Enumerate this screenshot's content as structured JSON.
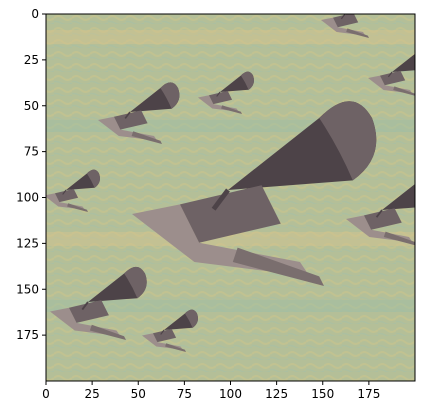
{
  "image": {
    "subject": "tiled-gramophone-collage",
    "colors": {
      "background_green": "#b4bf98",
      "background_yellow": "#d5c48f",
      "background_blue": "#9ebda4",
      "object_dark": "#4d4348",
      "object_mid": "#6e6265",
      "object_light": "#9c8e8c",
      "axes": "#000000"
    }
  },
  "axes": {
    "x_ticks": [
      "0",
      "25",
      "50",
      "75",
      "100",
      "125",
      "150",
      "175"
    ],
    "y_ticks": [
      "0",
      "25",
      "50",
      "75",
      "100",
      "125",
      "150",
      "175"
    ],
    "x_range": [
      0,
      200
    ],
    "y_range": [
      0,
      200
    ],
    "y_inverted": true
  }
}
